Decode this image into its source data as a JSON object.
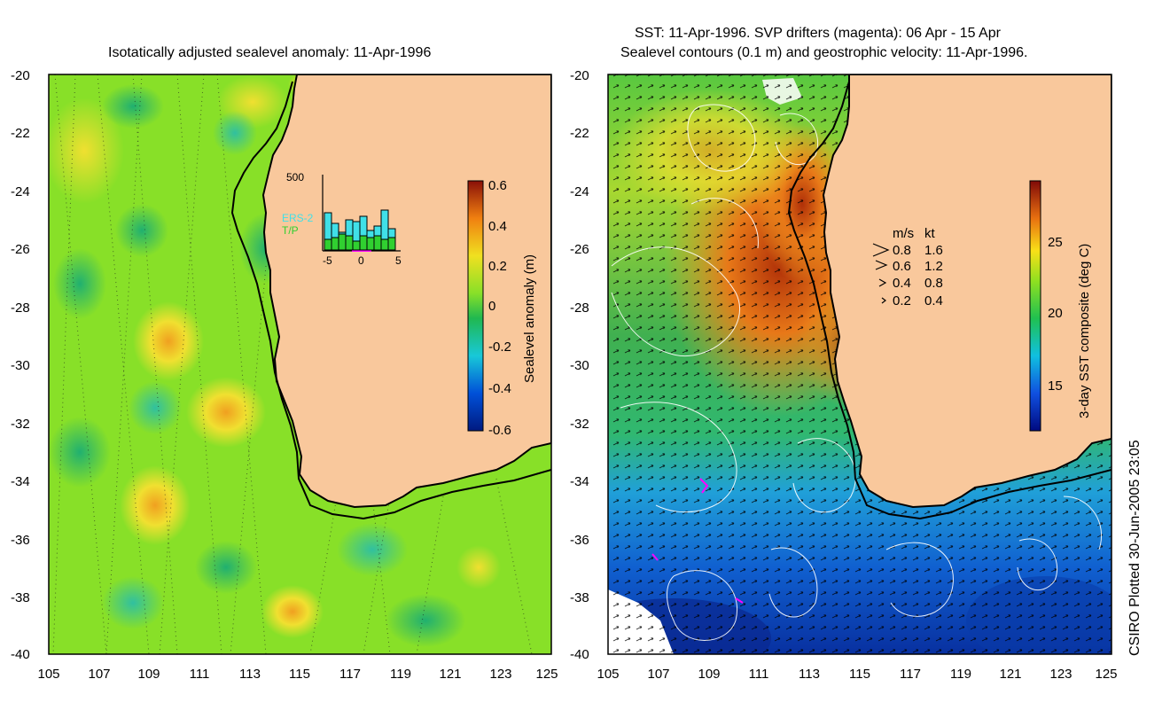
{
  "left_panel": {
    "title": "Isotatically adjusted sealevel anomaly: 11-Apr-1996",
    "colorbar": {
      "label": "Sealevel anomaly (m)",
      "ticks": [
        "0.6",
        "0.4",
        "0.2",
        "0",
        "-0.2",
        "-0.4",
        "-0.6"
      ]
    },
    "inset": {
      "ymax_label": "500",
      "series_labels": [
        "ERS-2",
        "T/P"
      ],
      "x_ticks": [
        "-5",
        "0",
        "5"
      ],
      "ers2_color": "#40e0e8",
      "tp_color": "#30d030"
    }
  },
  "right_panel": {
    "title_line1": "SST: 11-Apr-1996. SVP drifters (magenta): 06 Apr - 15 Apr",
    "title_line2": "Sealevel contours (0.1 m) and geostrophic velocity: 11-Apr-1996.",
    "colorbar": {
      "label": "3-day SST composite (deg C)",
      "ticks": [
        "25",
        "20",
        "15"
      ]
    },
    "legend": {
      "header_ms": "m/s",
      "header_kt": "kt",
      "rows": [
        {
          "ms": "0.8",
          "kt": "1.6"
        },
        {
          "ms": "0.6",
          "kt": "1.2"
        },
        {
          "ms": "0.4",
          "kt": "0.8"
        },
        {
          "ms": "0.2",
          "kt": "0.4"
        }
      ]
    }
  },
  "axes": {
    "lat_ticks": [
      "-20",
      "-22",
      "-24",
      "-26",
      "-28",
      "-30",
      "-32",
      "-34",
      "-36",
      "-38",
      "-40"
    ],
    "lon_ticks": [
      "105",
      "107",
      "109",
      "111",
      "113",
      "115",
      "117",
      "119",
      "121",
      "123",
      "125"
    ]
  },
  "credit": "CSIRO Plotted 30-Jun-2005 23:05",
  "colors": {
    "land": "#f9c89c",
    "ocean_left": "#88e028",
    "coast": "#000000"
  }
}
